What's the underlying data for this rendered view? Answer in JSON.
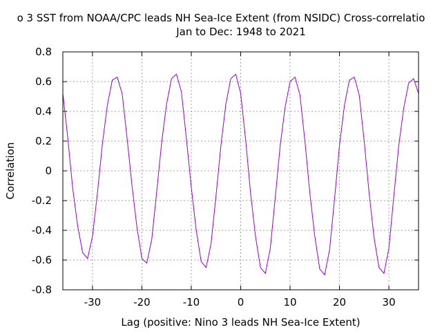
{
  "chart_data": {
    "type": "line",
    "title_line1": "o 3 SST from NOAA/CPC  leads NH Sea-Ice Extent (from NSIDC) Cross-correlatio",
    "title_line2": "Jan to Dec: 1948 to 2021",
    "xlabel": "Lag (positive: Nino 3 leads NH Sea-Ice Extent)",
    "ylabel": "Correlation",
    "xlim": [
      -36,
      36
    ],
    "ylim": [
      -0.8,
      0.8
    ],
    "xticks": [
      -30,
      -20,
      -10,
      0,
      10,
      20,
      30
    ],
    "xtick_labels": [
      "-30",
      "-20",
      "-10",
      "0",
      "10",
      "20",
      "30"
    ],
    "yticks": [
      -0.8,
      -0.6,
      -0.4,
      -0.2,
      0,
      0.2,
      0.4,
      0.6,
      0.8
    ],
    "ytick_labels": [
      "-0.8",
      "-0.6",
      "-0.4",
      "-0.2",
      "0",
      "0.2",
      "0.4",
      "0.6",
      "0.8"
    ],
    "grid": true,
    "line_color": "#9400d3",
    "series": [
      {
        "x": [
          -36,
          -35,
          -34,
          -33,
          -32,
          -31,
          -30,
          -29,
          -28,
          -27,
          -26,
          -25,
          -24,
          -23,
          -22,
          -21,
          -20,
          -19,
          -18,
          -17,
          -16,
          -15,
          -14,
          -13,
          -12,
          -11,
          -10,
          -9,
          -8,
          -7,
          -6,
          -5,
          -4,
          -3,
          -2,
          -1,
          0,
          1,
          2,
          3,
          4,
          5,
          6,
          7,
          8,
          9,
          10,
          11,
          12,
          13,
          14,
          15,
          16,
          17,
          18,
          19,
          20,
          21,
          22,
          23,
          24,
          25,
          26,
          27,
          28,
          29,
          30,
          31,
          32,
          33,
          34,
          35,
          36
        ],
        "y": [
          0.52,
          0.22,
          -0.12,
          -0.37,
          -0.55,
          -0.59,
          -0.44,
          -0.15,
          0.18,
          0.44,
          0.61,
          0.63,
          0.52,
          0.22,
          -0.1,
          -0.38,
          -0.59,
          -0.62,
          -0.46,
          -0.14,
          0.19,
          0.45,
          0.62,
          0.65,
          0.53,
          0.22,
          -0.11,
          -0.4,
          -0.61,
          -0.65,
          -0.49,
          -0.17,
          0.17,
          0.45,
          0.62,
          0.65,
          0.52,
          0.21,
          -0.15,
          -0.44,
          -0.65,
          -0.69,
          -0.52,
          -0.18,
          0.17,
          0.43,
          0.6,
          0.63,
          0.51,
          0.2,
          -0.15,
          -0.44,
          -0.66,
          -0.7,
          -0.53,
          -0.19,
          0.17,
          0.44,
          0.61,
          0.63,
          0.51,
          0.2,
          -0.15,
          -0.45,
          -0.65,
          -0.69,
          -0.52,
          -0.17,
          0.17,
          0.42,
          0.59,
          0.62,
          0.52
        ]
      }
    ]
  }
}
